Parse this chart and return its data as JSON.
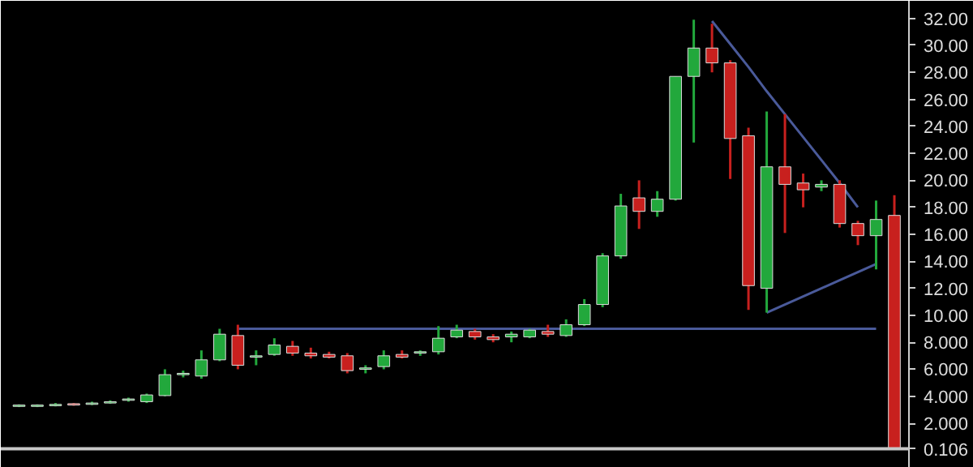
{
  "chart_data": {
    "type": "candlestick",
    "tick_labels": "y",
    "categories": [
      null,
      null,
      null,
      null,
      null,
      null,
      null,
      null,
      null,
      null,
      null,
      null,
      null,
      null,
      null,
      null,
      null,
      null,
      null,
      null,
      null,
      null,
      null,
      null,
      null,
      null,
      null,
      null,
      null,
      null,
      null,
      null,
      null,
      null,
      null,
      null,
      null,
      null,
      null,
      null,
      null,
      null,
      null,
      null,
      null,
      null,
      null,
      null,
      null
    ],
    "ohlc": [
      [
        3.25,
        3.4,
        3.2,
        3.35
      ],
      [
        3.25,
        3.4,
        3.2,
        3.35
      ],
      [
        3.3,
        3.5,
        3.25,
        3.4
      ],
      [
        3.45,
        3.5,
        3.3,
        3.35
      ],
      [
        3.4,
        3.6,
        3.35,
        3.5
      ],
      [
        3.5,
        3.7,
        3.45,
        3.6
      ],
      [
        3.7,
        3.9,
        3.6,
        3.8
      ],
      [
        3.6,
        4.2,
        3.5,
        4.1
      ],
      [
        4.05,
        6.0,
        4.0,
        5.6
      ],
      [
        5.6,
        5.9,
        5.4,
        5.7
      ],
      [
        5.5,
        7.4,
        5.3,
        6.7
      ],
      [
        6.7,
        9.0,
        6.6,
        8.6
      ],
      [
        8.5,
        9.3,
        6.0,
        6.3
      ],
      [
        6.9,
        7.4,
        6.3,
        7.0
      ],
      [
        7.1,
        8.3,
        7.0,
        7.8
      ],
      [
        7.7,
        8.1,
        7.0,
        7.2
      ],
      [
        7.2,
        7.6,
        6.8,
        7.0
      ],
      [
        7.1,
        7.3,
        6.8,
        6.9
      ],
      [
        7.0,
        7.2,
        5.7,
        5.9
      ],
      [
        6.0,
        6.3,
        5.7,
        6.1
      ],
      [
        6.2,
        7.4,
        6.0,
        7.0
      ],
      [
        7.1,
        7.4,
        6.8,
        6.9
      ],
      [
        7.2,
        7.4,
        7.0,
        7.3
      ],
      [
        7.3,
        9.2,
        7.1,
        8.3
      ],
      [
        8.4,
        9.3,
        8.3,
        8.9
      ],
      [
        8.8,
        9.0,
        8.2,
        8.4
      ],
      [
        8.4,
        8.6,
        8.0,
        8.2
      ],
      [
        8.4,
        8.8,
        8.0,
        8.6
      ],
      [
        8.4,
        9.0,
        8.3,
        8.9
      ],
      [
        8.8,
        9.3,
        8.4,
        8.6
      ],
      [
        8.5,
        9.7,
        8.4,
        9.3
      ],
      [
        9.3,
        11.2,
        9.2,
        10.8
      ],
      [
        10.8,
        14.6,
        10.6,
        14.4
      ],
      [
        14.4,
        19.0,
        14.2,
        18.1
      ],
      [
        18.7,
        20.0,
        16.4,
        17.7
      ],
      [
        17.7,
        19.2,
        17.3,
        18.6
      ],
      [
        18.6,
        27.7,
        18.5,
        27.7
      ],
      [
        27.7,
        31.9,
        22.8,
        29.8
      ],
      [
        29.8,
        31.6,
        28.0,
        28.7
      ],
      [
        28.7,
        28.9,
        20.1,
        23.1
      ],
      [
        23.3,
        23.9,
        10.4,
        12.2
      ],
      [
        12.0,
        25.1,
        10.2,
        21.0
      ],
      [
        21.0,
        24.9,
        16.1,
        19.7
      ],
      [
        19.8,
        20.5,
        18.0,
        19.3
      ],
      [
        19.5,
        20.0,
        19.2,
        19.7
      ],
      [
        19.7,
        20.0,
        16.5,
        16.8
      ],
      [
        16.8,
        17.0,
        15.2,
        15.9
      ],
      [
        15.9,
        18.5,
        13.4,
        17.1
      ],
      [
        17.4,
        18.9,
        0.106,
        0.106
      ]
    ],
    "colors": [
      "#22a83c",
      "#22a83c",
      "#22a83c",
      "#c8201e",
      "#22a83c",
      "#22a83c",
      "#22a83c",
      "#22a83c",
      "#22a83c",
      "#22a83c",
      "#22a83c",
      "#22a83c",
      "#c8201e",
      "#22a83c",
      "#22a83c",
      "#c8201e",
      "#c8201e",
      "#c8201e",
      "#c8201e",
      "#22a83c",
      "#22a83c",
      "#c8201e",
      "#22a83c",
      "#22a83c",
      "#22a83c",
      "#c8201e",
      "#c8201e",
      "#22a83c",
      "#22a83c",
      "#c8201e",
      "#22a83c",
      "#22a83c",
      "#22a83c",
      "#22a83c",
      "#c8201e",
      "#22a83c",
      "#22a83c",
      "#22a83c",
      "#c8201e",
      "#c8201e",
      "#c8201e",
      "#22a83c",
      "#c8201e",
      "#c8201e",
      "#22a83c",
      "#c8201e",
      "#c8201e",
      "#22a83c",
      "#c8201e"
    ],
    "series": [
      {
        "type": "line",
        "color": "#4a5a9a",
        "values": [
          null,
          null,
          null,
          null,
          null,
          null,
          null,
          null,
          null,
          null,
          null,
          null,
          9.0,
          9.0,
          9.0,
          9.0,
          9.0,
          9.0,
          9.0,
          9.0,
          9.0,
          9.0,
          9.0,
          9.0,
          9.0,
          9.0,
          9.0,
          9.0,
          9.0,
          9.0,
          9.0,
          9.0,
          9.0,
          9.0,
          9.0,
          9.0,
          9.0,
          9.0,
          9.0,
          9.0,
          9.0,
          9.0,
          9.0,
          9.0,
          9.0,
          9.0,
          9.0,
          9.0,
          null
        ]
      },
      {
        "type": "line",
        "color": "#4a5a9a",
        "values": [
          null,
          null,
          null,
          null,
          null,
          null,
          null,
          null,
          null,
          null,
          null,
          null,
          null,
          null,
          null,
          null,
          null,
          null,
          null,
          null,
          null,
          null,
          null,
          null,
          null,
          null,
          null,
          null,
          null,
          null,
          null,
          null,
          null,
          null,
          null,
          null,
          null,
          null,
          31.8,
          30.1,
          28.4,
          26.6,
          24.9,
          23.2,
          21.5,
          19.8,
          18.0,
          null,
          null
        ]
      },
      {
        "type": "line",
        "color": "#4a5a9a",
        "values": [
          null,
          null,
          null,
          null,
          null,
          null,
          null,
          null,
          null,
          null,
          null,
          null,
          null,
          null,
          null,
          null,
          null,
          null,
          null,
          null,
          null,
          null,
          null,
          null,
          null,
          null,
          null,
          null,
          null,
          null,
          null,
          null,
          null,
          null,
          null,
          null,
          null,
          null,
          null,
          null,
          null,
          10.2,
          10.8,
          11.4,
          12.0,
          12.6,
          13.2,
          13.8,
          null
        ]
      }
    ],
    "ref_lines": [
      {
        "axis": "y",
        "value": 0.106,
        "color": "#c8c8c8"
      }
    ],
    "ylim": [
      -1.3,
      33.3
    ],
    "yticks": [
      {
        "value": 0.106,
        "label": "0.106"
      },
      {
        "value": 2,
        "label": "2.000"
      },
      {
        "value": 4,
        "label": "4.000"
      },
      {
        "value": 6,
        "label": "6.000"
      },
      {
        "value": 8,
        "label": "8.000"
      },
      {
        "value": 10,
        "label": "10.00"
      },
      {
        "value": 12,
        "label": "12.00"
      },
      {
        "value": 14,
        "label": "14.00"
      },
      {
        "value": 16,
        "label": "16.00"
      },
      {
        "value": 18,
        "label": "18.00"
      },
      {
        "value": 20,
        "label": "20.00"
      },
      {
        "value": 22,
        "label": "22.00"
      },
      {
        "value": 24,
        "label": "24.00"
      },
      {
        "value": 26,
        "label": "26.00"
      },
      {
        "value": 28,
        "label": "28.00"
      },
      {
        "value": 30,
        "label": "30.00"
      },
      {
        "value": 32,
        "label": "32.00"
      }
    ]
  }
}
